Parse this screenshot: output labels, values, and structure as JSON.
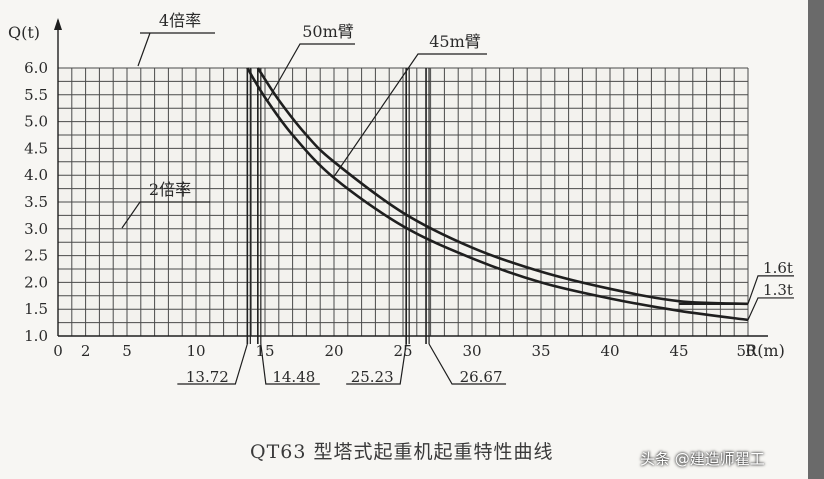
{
  "chart_data": {
    "type": "line",
    "title": "QT63 型塔式起重机起重特性曲线",
    "xlabel": "R(m)",
    "ylabel": "Q(t)",
    "xlim": [
      0,
      50
    ],
    "ylim": [
      1.0,
      6.0
    ],
    "x_ticks": [
      "0",
      "2",
      "5",
      "10",
      "15",
      "20",
      "25",
      "30",
      "35",
      "40",
      "45",
      "50"
    ],
    "x_tick_values": [
      0,
      2,
      5,
      10,
      15,
      20,
      25,
      30,
      35,
      40,
      45,
      50
    ],
    "y_ticks": [
      "1.0",
      "1.5",
      "2.0",
      "2.5",
      "3.0",
      "3.5",
      "4.0",
      "4.5",
      "5.0",
      "5.5",
      "6.0"
    ],
    "y_tick_values": [
      1.0,
      1.5,
      2.0,
      2.5,
      3.0,
      3.5,
      4.0,
      4.5,
      5.0,
      5.5,
      6.0
    ],
    "grid": true,
    "series": [
      {
        "name": "50m臂",
        "x": [
          13.72,
          15,
          17,
          20,
          25,
          30,
          35,
          40,
          45,
          50
        ],
        "y": [
          6.0,
          5.45,
          4.75,
          3.95,
          3.05,
          2.45,
          2.0,
          1.7,
          1.47,
          1.3
        ]
      },
      {
        "name": "45m臂",
        "x": [
          14.48,
          16,
          18,
          20,
          25,
          30,
          35,
          40,
          45,
          50
        ],
        "y": [
          6.0,
          5.4,
          4.75,
          4.25,
          3.3,
          2.65,
          2.2,
          1.88,
          1.65,
          1.6
        ]
      }
    ],
    "annotations": {
      "rate_4x": "4倍率",
      "rate_2x": "2倍率",
      "arm_50": "50m臂",
      "arm_45": "45m臂",
      "end_45": "1.6t",
      "end_50": "1.3t",
      "markers": [
        {
          "x": 13.72,
          "label": "13.72"
        },
        {
          "x": 14.48,
          "label": "14.48"
        },
        {
          "x": 25.23,
          "label": "25.23"
        },
        {
          "x": 26.67,
          "label": "26.67"
        }
      ]
    }
  },
  "caption": "QT63 型塔式起重机起重特性曲线",
  "watermark": "头条 @建造师瞿工",
  "colors": {
    "background": "#f7f6f3",
    "grid": "#4a4a4a",
    "curve": "#1f1f1f",
    "text": "#2a2a2a",
    "frame": "#6a6a6a"
  }
}
